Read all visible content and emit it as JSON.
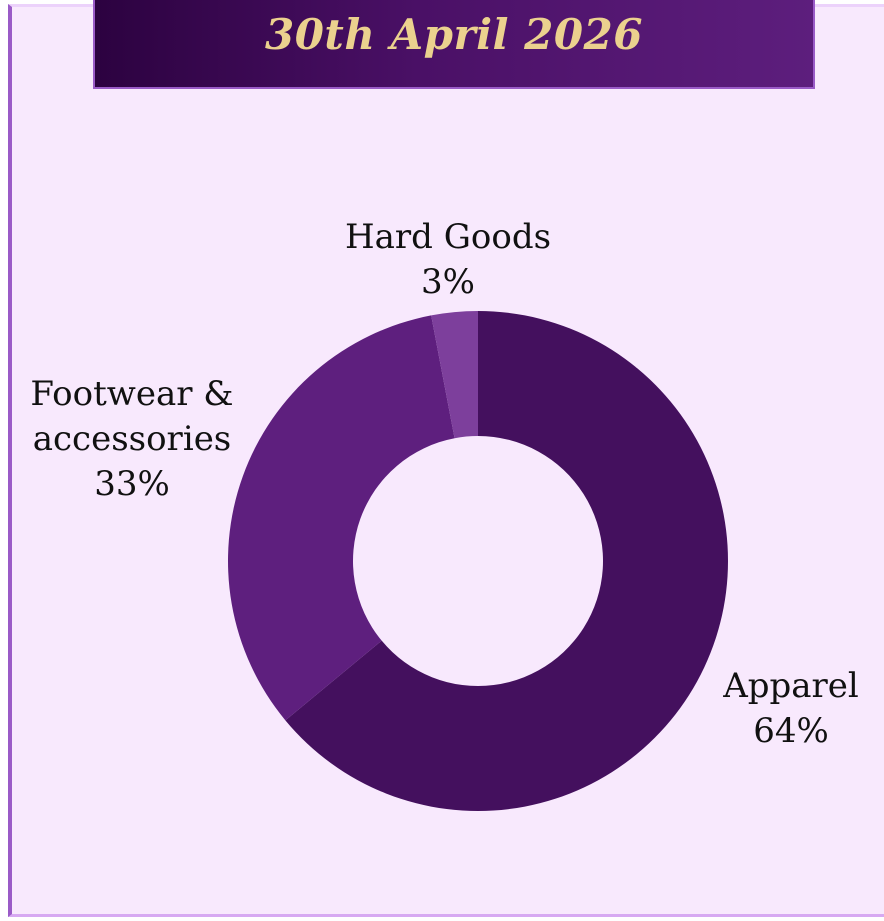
{
  "header": {
    "date": "30th April 2026"
  },
  "colors": {
    "panel_background": "#f8e9fd",
    "banner_gradient_start": "#2c0240",
    "banner_gradient_end": "#5d1e7d",
    "banner_text": "#ebd18e",
    "apparel": "#44105e",
    "footwear_accessories": "#5e1f7e",
    "hard_goods": "#7d3f9c"
  },
  "chart_data": {
    "type": "pie",
    "variant": "donut",
    "title": "",
    "categories": [
      "Apparel",
      "Footwear & accessories",
      "Hard Goods"
    ],
    "values": [
      64,
      33,
      3
    ],
    "labels": [
      {
        "name": "Apparel",
        "percent": "64%"
      },
      {
        "name": "Footwear & accessories",
        "name_lines": [
          "Footwear &",
          "accessories"
        ],
        "percent": "33%"
      },
      {
        "name": "Hard Goods",
        "percent": "3%"
      }
    ],
    "legend": "none",
    "start_angle": "12 o'clock, clockwise"
  }
}
